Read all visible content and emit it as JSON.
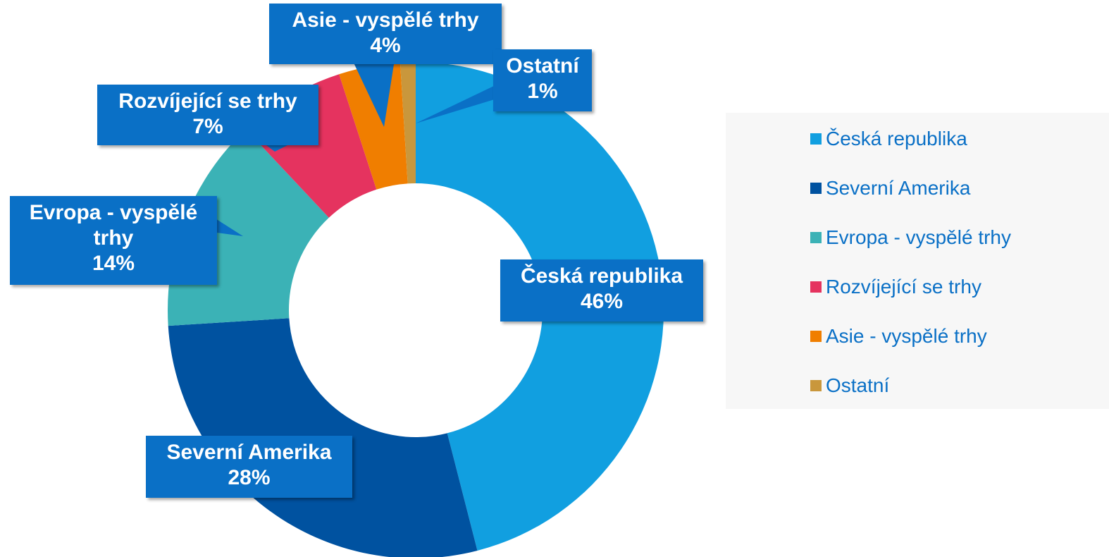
{
  "chart_data": {
    "type": "donut",
    "categories": [
      "Česká republika",
      "Severní Amerika",
      "Evropa - vyspělé trhy",
      "Rozvíjející se trhy",
      "Asie - vyspělé trhy",
      "Ostatní"
    ],
    "values": [
      46,
      28,
      14,
      7,
      4,
      1
    ],
    "value_labels": [
      "46%",
      "28%",
      "14%",
      "7%",
      "4%",
      "1%"
    ],
    "colors": [
      "#119fe0",
      "#0052a0",
      "#3bb2b6",
      "#e5335f",
      "#f07e00",
      "#c9973c"
    ],
    "legend": "right"
  }
}
